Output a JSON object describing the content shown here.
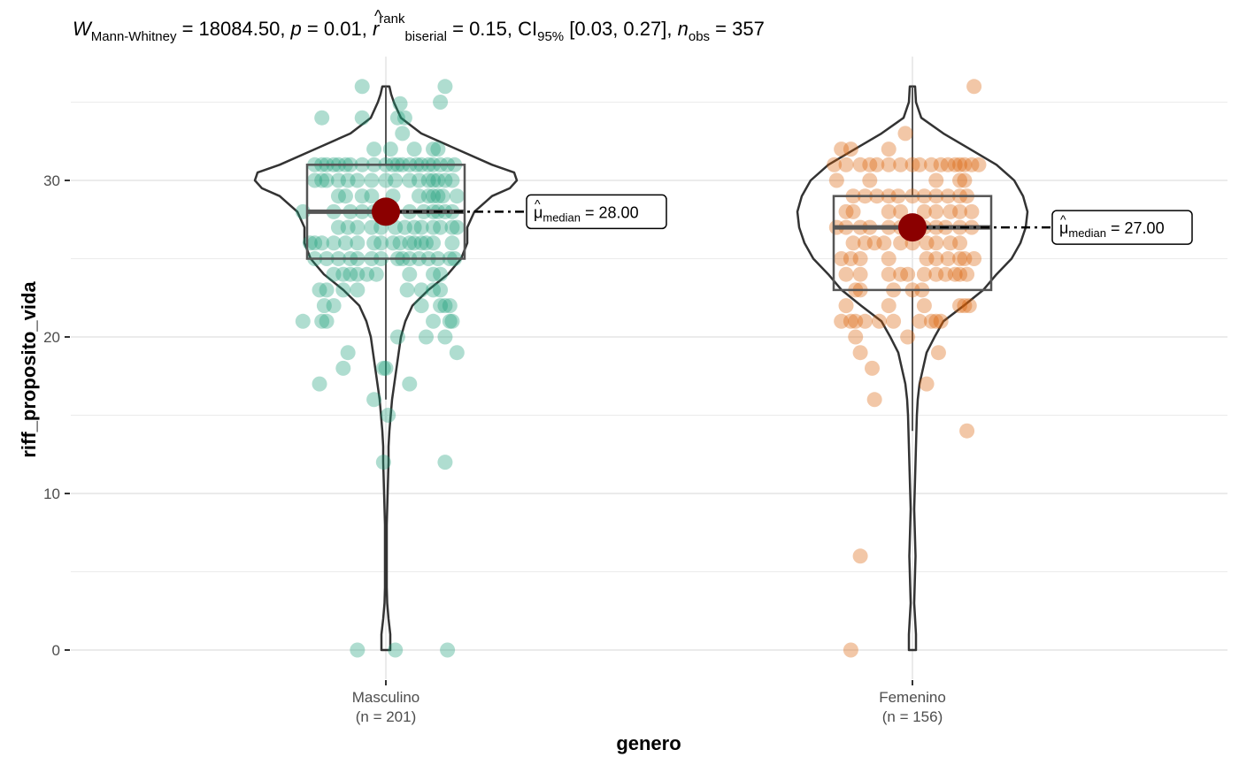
{
  "chart_data": {
    "type": "violin-box-scatter",
    "subtitle": {
      "statistic_symbol": "W",
      "statistic_sub": "Mann-Whitney",
      "statistic_value": "18084.50",
      "p_symbol": "p",
      "p_value": "0.01",
      "effect_symbol": "r",
      "effect_sup": "rank",
      "effect_sub": "biserial",
      "effect_value": "0.15",
      "ci_symbol": "CI",
      "ci_sub": "95%",
      "ci_value": "[0.03, 0.27]",
      "n_symbol": "n",
      "n_sub": "obs",
      "n_value": "357"
    },
    "xlabel": "genero",
    "ylabel": "riff_proposito_vida",
    "ylim": [
      -1.8,
      38
    ],
    "yticks": [
      0,
      10,
      20,
      30
    ],
    "grid": true,
    "groups": [
      {
        "name": "Masculino",
        "n_label": "(n = 201)",
        "color": "#1b9e77",
        "median": 28,
        "median_label_symbol": "μ",
        "median_label_sub": "median",
        "median_label_value": "28.00",
        "box": {
          "q1": 25,
          "median": 28,
          "q3": 31,
          "whisker_low": 16,
          "whisker_high": 36
        },
        "violin_range": [
          0,
          36
        ],
        "points": [
          [
            -0.1,
            36
          ],
          [
            0.25,
            36
          ],
          [
            0.23,
            35
          ],
          [
            0.06,
            34.9
          ],
          [
            -0.27,
            34
          ],
          [
            -0.1,
            34
          ],
          [
            0.05,
            34
          ],
          [
            0.08,
            34
          ],
          [
            0.07,
            33
          ],
          [
            -0.05,
            32
          ],
          [
            0.02,
            32
          ],
          [
            0.12,
            32
          ],
          [
            0.2,
            32
          ],
          [
            0.22,
            32
          ],
          [
            -0.3,
            31
          ],
          [
            -0.27,
            31
          ],
          [
            -0.25,
            31
          ],
          [
            -0.22,
            31
          ],
          [
            -0.2,
            31
          ],
          [
            -0.17,
            31
          ],
          [
            -0.15,
            31
          ],
          [
            -0.1,
            31
          ],
          [
            -0.05,
            31
          ],
          [
            0.0,
            31
          ],
          [
            0.03,
            31
          ],
          [
            0.05,
            31
          ],
          [
            0.07,
            31
          ],
          [
            0.1,
            31
          ],
          [
            0.13,
            31
          ],
          [
            0.15,
            31
          ],
          [
            0.18,
            31
          ],
          [
            0.2,
            31
          ],
          [
            0.23,
            31
          ],
          [
            0.26,
            31
          ],
          [
            0.29,
            31
          ],
          [
            -0.3,
            30
          ],
          [
            -0.27,
            30
          ],
          [
            -0.25,
            30
          ],
          [
            -0.2,
            30
          ],
          [
            -0.16,
            30
          ],
          [
            -0.12,
            30
          ],
          [
            -0.06,
            30
          ],
          [
            0.0,
            30
          ],
          [
            0.04,
            30
          ],
          [
            0.1,
            30
          ],
          [
            0.14,
            30
          ],
          [
            0.18,
            30
          ],
          [
            0.2,
            30
          ],
          [
            0.22,
            30
          ],
          [
            0.25,
            30
          ],
          [
            0.28,
            30
          ],
          [
            -0.2,
            29
          ],
          [
            -0.17,
            29
          ],
          [
            -0.1,
            29
          ],
          [
            -0.06,
            29
          ],
          [
            0.03,
            29
          ],
          [
            0.14,
            29
          ],
          [
            0.18,
            29
          ],
          [
            0.2,
            29
          ],
          [
            0.22,
            29
          ],
          [
            0.24,
            29
          ],
          [
            0.3,
            29
          ],
          [
            -0.35,
            28
          ],
          [
            -0.22,
            28
          ],
          [
            -0.15,
            28
          ],
          [
            -0.1,
            28
          ],
          [
            -0.05,
            28
          ],
          [
            0.1,
            28
          ],
          [
            0.16,
            28
          ],
          [
            0.2,
            28
          ],
          [
            0.22,
            28
          ],
          [
            0.25,
            28
          ],
          [
            0.28,
            28
          ],
          [
            -0.2,
            27
          ],
          [
            -0.16,
            27
          ],
          [
            -0.12,
            27
          ],
          [
            -0.06,
            27
          ],
          [
            -0.02,
            27
          ],
          [
            0.04,
            27
          ],
          [
            0.08,
            27
          ],
          [
            0.12,
            27
          ],
          [
            0.15,
            27
          ],
          [
            0.2,
            27
          ],
          [
            0.23,
            27
          ],
          [
            0.28,
            27
          ],
          [
            0.3,
            27
          ],
          [
            -0.32,
            26
          ],
          [
            -0.3,
            26
          ],
          [
            -0.27,
            26
          ],
          [
            -0.22,
            26
          ],
          [
            -0.17,
            26
          ],
          [
            -0.12,
            26
          ],
          [
            -0.05,
            26
          ],
          [
            -0.02,
            26
          ],
          [
            0.03,
            26
          ],
          [
            0.06,
            26
          ],
          [
            0.1,
            26
          ],
          [
            0.12,
            26
          ],
          [
            0.15,
            26
          ],
          [
            0.17,
            26
          ],
          [
            0.2,
            26
          ],
          [
            0.28,
            26
          ],
          [
            -0.3,
            25
          ],
          [
            -0.25,
            25
          ],
          [
            -0.2,
            25
          ],
          [
            -0.15,
            25
          ],
          [
            -0.12,
            25
          ],
          [
            -0.06,
            25
          ],
          [
            -0.02,
            25
          ],
          [
            0.05,
            25
          ],
          [
            0.07,
            25
          ],
          [
            0.1,
            25
          ],
          [
            0.14,
            25
          ],
          [
            0.18,
            25
          ],
          [
            0.22,
            25
          ],
          [
            0.27,
            25
          ],
          [
            0.29,
            25
          ],
          [
            -0.22,
            24
          ],
          [
            -0.18,
            24
          ],
          [
            -0.15,
            24
          ],
          [
            -0.12,
            24
          ],
          [
            -0.08,
            24
          ],
          [
            -0.04,
            24
          ],
          [
            0.1,
            24
          ],
          [
            0.2,
            24
          ],
          [
            0.23,
            24
          ],
          [
            -0.28,
            23
          ],
          [
            -0.25,
            23
          ],
          [
            -0.18,
            23
          ],
          [
            -0.12,
            23
          ],
          [
            0.09,
            23
          ],
          [
            0.15,
            23
          ],
          [
            0.2,
            23
          ],
          [
            0.23,
            23
          ],
          [
            -0.26,
            22
          ],
          [
            -0.22,
            22
          ],
          [
            0.15,
            22
          ],
          [
            0.23,
            22
          ],
          [
            0.25,
            22
          ],
          [
            0.27,
            22
          ],
          [
            -0.35,
            21
          ],
          [
            -0.27,
            21
          ],
          [
            -0.25,
            21
          ],
          [
            0.2,
            21
          ],
          [
            0.27,
            21
          ],
          [
            0.28,
            21
          ],
          [
            0.05,
            20
          ],
          [
            0.17,
            20
          ],
          [
            0.25,
            20
          ],
          [
            -0.16,
            19
          ],
          [
            0.3,
            19
          ],
          [
            -0.18,
            18
          ],
          [
            -0.01,
            18
          ],
          [
            0.0,
            18
          ],
          [
            -0.28,
            17
          ],
          [
            0.1,
            17
          ],
          [
            -0.05,
            16
          ],
          [
            0.01,
            15
          ],
          [
            -0.01,
            12
          ],
          [
            0.25,
            12
          ],
          [
            -0.12,
            0
          ],
          [
            0.04,
            0
          ],
          [
            0.26,
            0
          ]
        ]
      },
      {
        "name": "Femenino",
        "n_label": "(n = 156)",
        "color": "#d95f02",
        "median": 27,
        "median_label_symbol": "μ",
        "median_label_sub": "median",
        "median_label_value": "27.00",
        "box": {
          "q1": 23,
          "median": 27,
          "q3": 29,
          "whisker_low": 14,
          "whisker_high": 36
        },
        "violin_range": [
          0,
          36
        ],
        "points": [
          [
            0.26,
            36
          ],
          [
            -0.03,
            33
          ],
          [
            -0.3,
            32
          ],
          [
            -0.26,
            32
          ],
          [
            -0.1,
            32
          ],
          [
            -0.33,
            31
          ],
          [
            -0.28,
            31
          ],
          [
            -0.22,
            31
          ],
          [
            -0.18,
            31
          ],
          [
            -0.15,
            31
          ],
          [
            -0.1,
            31
          ],
          [
            -0.05,
            31
          ],
          [
            0.0,
            31
          ],
          [
            0.03,
            31
          ],
          [
            0.08,
            31
          ],
          [
            0.12,
            31
          ],
          [
            0.15,
            31
          ],
          [
            0.18,
            31
          ],
          [
            0.2,
            31
          ],
          [
            0.22,
            31
          ],
          [
            0.25,
            31
          ],
          [
            0.28,
            31
          ],
          [
            -0.32,
            30
          ],
          [
            -0.18,
            30
          ],
          [
            0.1,
            30
          ],
          [
            0.2,
            30
          ],
          [
            0.22,
            30
          ],
          [
            -0.25,
            29
          ],
          [
            -0.2,
            29
          ],
          [
            -0.15,
            29
          ],
          [
            -0.1,
            29
          ],
          [
            -0.06,
            29
          ],
          [
            0.0,
            29
          ],
          [
            0.05,
            29
          ],
          [
            0.1,
            29
          ],
          [
            0.15,
            29
          ],
          [
            0.2,
            29
          ],
          [
            0.23,
            29
          ],
          [
            -0.28,
            28
          ],
          [
            -0.25,
            28
          ],
          [
            -0.1,
            28
          ],
          [
            -0.05,
            28
          ],
          [
            0.05,
            28
          ],
          [
            0.1,
            28
          ],
          [
            0.16,
            28
          ],
          [
            0.2,
            28
          ],
          [
            0.25,
            28
          ],
          [
            -0.32,
            27
          ],
          [
            -0.28,
            27
          ],
          [
            -0.22,
            27
          ],
          [
            -0.18,
            27
          ],
          [
            -0.1,
            27
          ],
          [
            -0.05,
            27
          ],
          [
            0.05,
            27
          ],
          [
            0.1,
            27
          ],
          [
            0.14,
            27
          ],
          [
            0.2,
            27
          ],
          [
            0.25,
            27
          ],
          [
            -0.25,
            26
          ],
          [
            -0.2,
            26
          ],
          [
            -0.16,
            26
          ],
          [
            -0.12,
            26
          ],
          [
            -0.05,
            26
          ],
          [
            0.0,
            26
          ],
          [
            0.06,
            26
          ],
          [
            0.1,
            26
          ],
          [
            0.16,
            26
          ],
          [
            0.2,
            26
          ],
          [
            -0.3,
            25
          ],
          [
            -0.26,
            25
          ],
          [
            -0.22,
            25
          ],
          [
            -0.1,
            25
          ],
          [
            0.06,
            25
          ],
          [
            0.1,
            25
          ],
          [
            0.15,
            25
          ],
          [
            0.2,
            25
          ],
          [
            0.22,
            25
          ],
          [
            0.26,
            25
          ],
          [
            -0.28,
            24
          ],
          [
            -0.22,
            24
          ],
          [
            -0.1,
            24
          ],
          [
            -0.05,
            24
          ],
          [
            -0.02,
            24
          ],
          [
            0.05,
            24
          ],
          [
            0.1,
            24
          ],
          [
            0.14,
            24
          ],
          [
            0.18,
            24
          ],
          [
            0.2,
            24
          ],
          [
            0.23,
            24
          ],
          [
            -0.24,
            23
          ],
          [
            -0.22,
            23
          ],
          [
            -0.08,
            23
          ],
          [
            0.0,
            23
          ],
          [
            0.04,
            23
          ],
          [
            -0.28,
            22
          ],
          [
            -0.1,
            22
          ],
          [
            0.05,
            22
          ],
          [
            0.2,
            22
          ],
          [
            0.22,
            22
          ],
          [
            0.24,
            22
          ],
          [
            -0.3,
            21
          ],
          [
            -0.26,
            21
          ],
          [
            -0.24,
            21
          ],
          [
            -0.2,
            21
          ],
          [
            -0.14,
            21
          ],
          [
            -0.08,
            21
          ],
          [
            0.03,
            21
          ],
          [
            0.08,
            21
          ],
          [
            0.1,
            21
          ],
          [
            0.12,
            21
          ],
          [
            -0.24,
            20
          ],
          [
            -0.02,
            20
          ],
          [
            -0.22,
            19
          ],
          [
            0.11,
            19
          ],
          [
            -0.17,
            18
          ],
          [
            0.06,
            17
          ],
          [
            -0.16,
            16
          ],
          [
            0.23,
            14
          ],
          [
            -0.22,
            6
          ],
          [
            -0.26,
            0
          ]
        ]
      }
    ],
    "median_point_color": "#8b0000"
  }
}
